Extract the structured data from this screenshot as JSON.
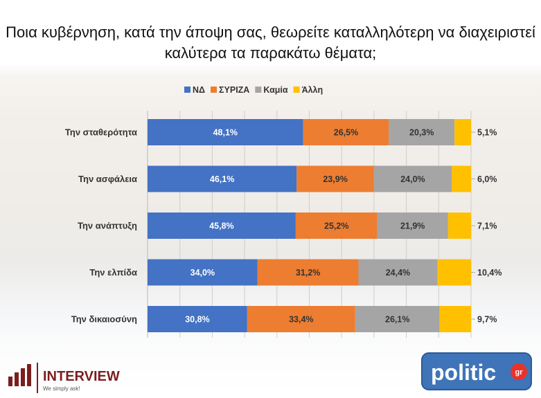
{
  "title": "Ποια κυβέρνηση, κατά την άποψη σας, θεωρείτε καταλληλότερη να διαχειριστεί καλύτερα τα παρακάτω θέματα;",
  "chart_data": {
    "type": "bar",
    "orientation": "horizontal",
    "stacked": true,
    "categories": [
      "Την σταθερότητα",
      "Την ασφάλεια",
      "Την ανάπτυξη",
      "Την ελπίδα",
      "Την δικαιοσύνη"
    ],
    "series": [
      {
        "name": "ΝΔ",
        "color": "#4472C4",
        "values": [
          48.1,
          46.1,
          45.8,
          34.0,
          30.8
        ],
        "labels": [
          "48,1%",
          "46,1%",
          "45,8%",
          "34,0%",
          "30,8%"
        ]
      },
      {
        "name": "ΣΥΡΙΖΑ",
        "color": "#ED7D31",
        "values": [
          26.5,
          23.9,
          25.2,
          31.2,
          33.4
        ],
        "labels": [
          "26,5%",
          "23,9%",
          "25,2%",
          "31,2%",
          "33,4%"
        ]
      },
      {
        "name": "Καμία",
        "color": "#A5A5A5",
        "values": [
          20.3,
          24.0,
          21.9,
          24.4,
          26.1
        ],
        "labels": [
          "20,3%",
          "24,0%",
          "21,9%",
          "24,4%",
          "26,1%"
        ]
      },
      {
        "name": "Άλλη",
        "color": "#FFC000",
        "values": [
          5.1,
          6.0,
          7.1,
          10.4,
          9.7
        ],
        "labels": [
          "5,1%",
          "6,0%",
          "7,1%",
          "10,4%",
          "9,7%"
        ]
      }
    ],
    "xlim": [
      0,
      100
    ],
    "legend_position": "top",
    "grid": true
  },
  "logos": {
    "interview_name": "INTERVIEW",
    "interview_tagline": "We simply ask!",
    "politic_name": "politic",
    "politic_suffix": "gr"
  }
}
